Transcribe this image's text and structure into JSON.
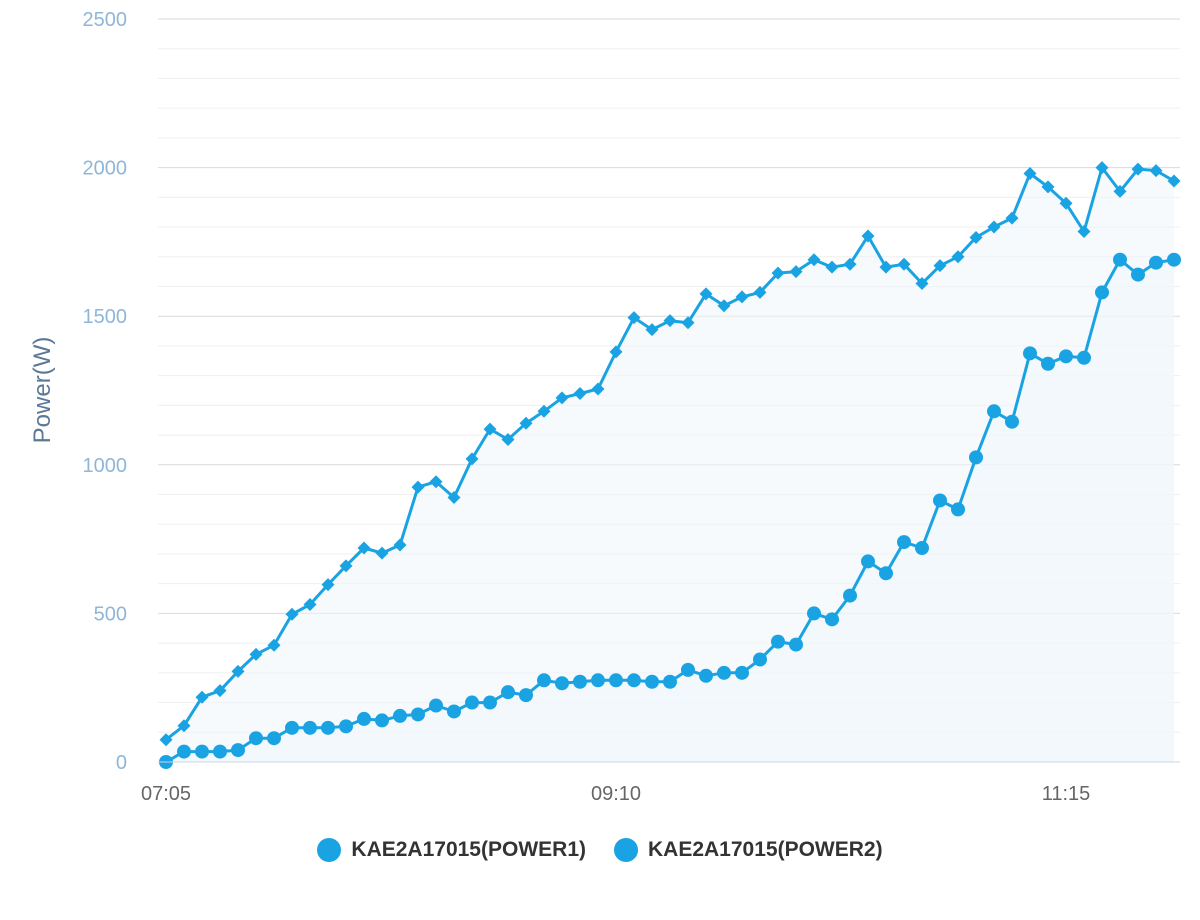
{
  "chart_data": {
    "type": "line",
    "ylabel": "Power(W)",
    "xlabel": "",
    "ylim": [
      0,
      2500
    ],
    "yticks": [
      "0",
      "500",
      "1000",
      "1500",
      "2000",
      "2500"
    ],
    "xtick_labels": [
      {
        "index": 0,
        "label": "07:05"
      },
      {
        "index": 25,
        "label": "09:10"
      },
      {
        "index": 50,
        "label": "11:15"
      }
    ],
    "legend_position": "bottom-center",
    "grid": true,
    "colors": {
      "series": "#1aa3e3",
      "fill": "#eef6fb",
      "axis_text": "#8fb6d9"
    },
    "series": [
      {
        "name": "KAE2A17015(POWER1)",
        "marker": "diamond",
        "values": [
          75,
          122,
          218,
          240,
          305,
          362,
          393,
          497,
          530,
          597,
          660,
          720,
          703,
          730,
          925,
          943,
          890,
          1020,
          1120,
          1085,
          1140,
          1180,
          1225,
          1240,
          1255,
          1380,
          1495,
          1455,
          1485,
          1478,
          1575,
          1535,
          1565,
          1580,
          1645,
          1650,
          1690,
          1665,
          1675,
          1770,
          1665,
          1675,
          1610,
          1670,
          1700,
          1765,
          1800,
          1830,
          1980,
          1935,
          1880,
          1785,
          2000,
          1920,
          1995,
          1990,
          1955
        ]
      },
      {
        "name": "KAE2A17015(POWER2)",
        "marker": "circle",
        "values": [
          0,
          35,
          35,
          35,
          40,
          80,
          80,
          115,
          115,
          115,
          120,
          145,
          140,
          155,
          160,
          190,
          170,
          200,
          200,
          235,
          225,
          275,
          265,
          270,
          275,
          275,
          275,
          270,
          270,
          310,
          290,
          300,
          300,
          345,
          405,
          395,
          500,
          480,
          560,
          675,
          635,
          740,
          720,
          880,
          850,
          1025,
          1180,
          1145,
          1375,
          1340,
          1365,
          1360,
          1580,
          1690,
          1640,
          1680,
          1690
        ]
      }
    ]
  }
}
